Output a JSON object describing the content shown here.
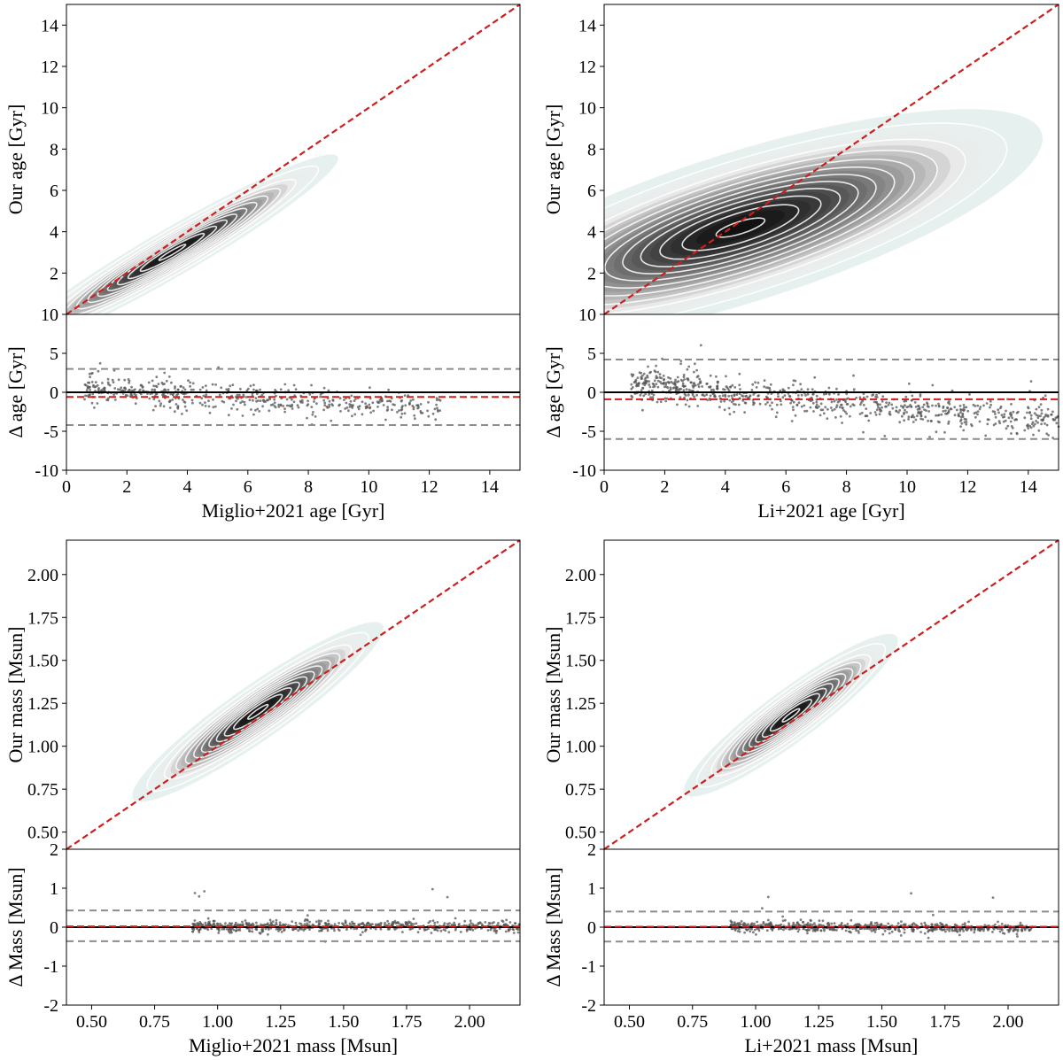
{
  "colors": {
    "identity": "#cc1f1f",
    "median": "#cc1f1f",
    "zero": "#000000",
    "scatter": "#555555",
    "bounds": "#8c8c8c",
    "density_dark": "#111111",
    "density_light": "#e4f3f1",
    "contour": "#ffffff"
  },
  "chart_data": [
    {
      "id": "age-miglio",
      "type": "scatter",
      "top": {
        "kind": "kde-density",
        "ylabel": "Our age [Gyr]",
        "xlim": [
          0,
          15
        ],
        "ylim": [
          0,
          15
        ],
        "yticks": [
          2,
          4,
          6,
          8,
          10,
          12,
          14
        ],
        "peak": [
          3.5,
          3.0
        ],
        "spread": [
          2.2,
          1.9
        ],
        "corr": 0.96,
        "identity_line": [
          [
            0,
            0
          ],
          [
            15,
            15
          ]
        ]
      },
      "bottom": {
        "ylabel": "Δ age [Gyr]",
        "xlabel": "Miglio+2021 age [Gyr]",
        "xlim": [
          0,
          15
        ],
        "ylim": [
          -10,
          10
        ],
        "xticks": [
          0,
          2,
          4,
          6,
          8,
          10,
          12,
          14
        ],
        "yticks": [
          -10,
          -5,
          0,
          5,
          10
        ],
        "zero": 0,
        "median": -0.6,
        "bounds": [
          3.0,
          -4.2
        ],
        "x_range": [
          0.6,
          12.4
        ],
        "slope": -0.22,
        "intercept": 0.6,
        "noise": 1.1,
        "n": 520,
        "outlier_seed": 11
      }
    },
    {
      "id": "age-li",
      "type": "scatter",
      "top": {
        "kind": "kde-density",
        "ylabel": "Our age [Gyr]",
        "xlim": [
          0,
          15
        ],
        "ylim": [
          0,
          15
        ],
        "yticks": [
          2,
          4,
          6,
          8,
          10,
          12,
          14
        ],
        "peak": [
          4.5,
          4.2
        ],
        "spread": [
          4.0,
          2.3
        ],
        "corr": 0.75,
        "identity_line": [
          [
            0,
            0
          ],
          [
            15,
            15
          ]
        ]
      },
      "bottom": {
        "ylabel": "Δ age [Gyr]",
        "xlabel": "Li+2021 age [Gyr]",
        "xlim": [
          0,
          15
        ],
        "ylim": [
          -10,
          10
        ],
        "xticks": [
          0,
          2,
          4,
          6,
          8,
          10,
          12,
          14
        ],
        "yticks": [
          -10,
          -5,
          0,
          5,
          10
        ],
        "zero": 0,
        "median": -0.9,
        "bounds": [
          4.2,
          -6.0
        ],
        "x_range": [
          0.9,
          15.0
        ],
        "slope": -0.35,
        "intercept": 1.4,
        "noise": 1.3,
        "n": 780,
        "outlier_seed": 23
      }
    },
    {
      "id": "mass-miglio",
      "type": "scatter",
      "top": {
        "kind": "kde-density",
        "ylabel": "Our mass [Msun]",
        "xlim": [
          0.4,
          2.2
        ],
        "ylim": [
          0.4,
          2.2
        ],
        "yticks": [
          0.5,
          0.75,
          1.0,
          1.25,
          1.5,
          1.75,
          2.0
        ],
        "ytick_labels": [
          "0.50",
          "0.75",
          "1.00",
          "1.25",
          "1.50",
          "1.75",
          "2.00"
        ],
        "peak": [
          1.16,
          1.2
        ],
        "spread": [
          0.2,
          0.21
        ],
        "corr": 0.93,
        "identity_line": [
          [
            0.4,
            0.4
          ],
          [
            2.2,
            2.2
          ]
        ]
      },
      "bottom": {
        "ylabel": "Δ Mass [Msun]",
        "xlabel": "Miglio+2021 mass [Msun]",
        "xlim": [
          0.4,
          2.2
        ],
        "ylim": [
          -2,
          2
        ],
        "xticks": [
          0.5,
          0.75,
          1.0,
          1.25,
          1.5,
          1.75,
          2.0
        ],
        "xtick_labels": [
          "0.50",
          "0.75",
          "1.00",
          "1.25",
          "1.50",
          "1.75",
          "2.00"
        ],
        "yticks": [
          -2,
          -1,
          0,
          1,
          2
        ],
        "zero": 0,
        "median": 0.02,
        "bounds": [
          0.43,
          -0.36
        ],
        "x_range": [
          0.9,
          2.2
        ],
        "slope": 0.0,
        "intercept": 0.02,
        "noise": 0.09,
        "n": 620,
        "outlier_seed": 37
      }
    },
    {
      "id": "mass-li",
      "type": "scatter",
      "top": {
        "kind": "kde-density",
        "ylabel": "Our mass [Msun]",
        "xlim": [
          0.4,
          2.2
        ],
        "ylim": [
          0.4,
          2.2
        ],
        "yticks": [
          0.5,
          0.75,
          1.0,
          1.25,
          1.5,
          1.75,
          2.0
        ],
        "ytick_labels": [
          "0.50",
          "0.75",
          "1.00",
          "1.25",
          "1.50",
          "1.75",
          "2.00"
        ],
        "peak": [
          1.14,
          1.18
        ],
        "spread": [
          0.17,
          0.19
        ],
        "corr": 0.92,
        "identity_line": [
          [
            0.4,
            0.4
          ],
          [
            2.2,
            2.2
          ]
        ]
      },
      "bottom": {
        "ylabel": "Δ Mass [Msun]",
        "xlabel": "Li+2021 mass [Msun]",
        "xlim": [
          0.4,
          2.2
        ],
        "ylim": [
          -2,
          2
        ],
        "xticks": [
          0.5,
          0.75,
          1.0,
          1.25,
          1.5,
          1.75,
          2.0
        ],
        "xtick_labels": [
          "0.50",
          "0.75",
          "1.00",
          "1.25",
          "1.50",
          "1.75",
          "2.00"
        ],
        "yticks": [
          -2,
          -1,
          0,
          1,
          2
        ],
        "zero": 0,
        "median": 0.01,
        "bounds": [
          0.4,
          -0.37
        ],
        "x_range": [
          0.9,
          2.1
        ],
        "slope": -0.05,
        "intercept": 0.07,
        "noise": 0.08,
        "n": 640,
        "outlier_seed": 53
      }
    }
  ]
}
